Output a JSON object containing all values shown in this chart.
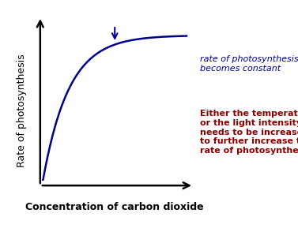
{
  "background_color": "#ffffff",
  "curve_color": "#00008B",
  "axis_color": "#000000",
  "xlabel": "Concentration of carbon dioxide",
  "ylabel": "Rate of photosynthesis",
  "annotation_blue_text": "rate of photosynthesis\nbecomes constant",
  "annotation_red_text": "Either the temperature\nor the light intensity\nneeds to be increased\nto further increase the\nrate of photosynthesis",
  "blue_text_color": "#00008B",
  "red_text_color": "#8B0000",
  "xlabel_fontsize": 9,
  "ylabel_fontsize": 9,
  "annotation_blue_fontsize": 8,
  "annotation_red_fontsize": 8,
  "curve_linewidth": 1.8,
  "k": 0.55
}
